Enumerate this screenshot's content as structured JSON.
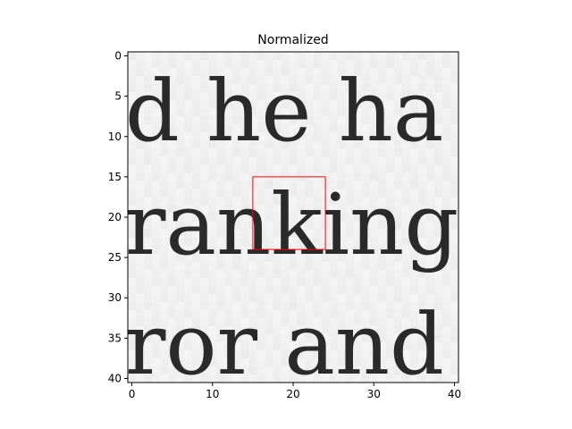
{
  "chart_data": {
    "type": "heatmap",
    "title": "Normalized",
    "xlabel": "",
    "ylabel": "",
    "image_size": [
      41,
      41
    ],
    "xlim": [
      -0.5,
      40.5
    ],
    "ylim": [
      40.5,
      -0.5
    ],
    "colormap": "gray",
    "xticks": [
      0,
      10,
      20,
      30,
      40
    ],
    "yticks": [
      0,
      5,
      10,
      15,
      20,
      25,
      30,
      35,
      40
    ],
    "content_text": [
      "d he ha",
      "ranking",
      "ror and"
    ],
    "highlight_box": {
      "x_range": [
        15,
        24
      ],
      "y_range": [
        15,
        24
      ],
      "color": "#ff0000"
    }
  }
}
